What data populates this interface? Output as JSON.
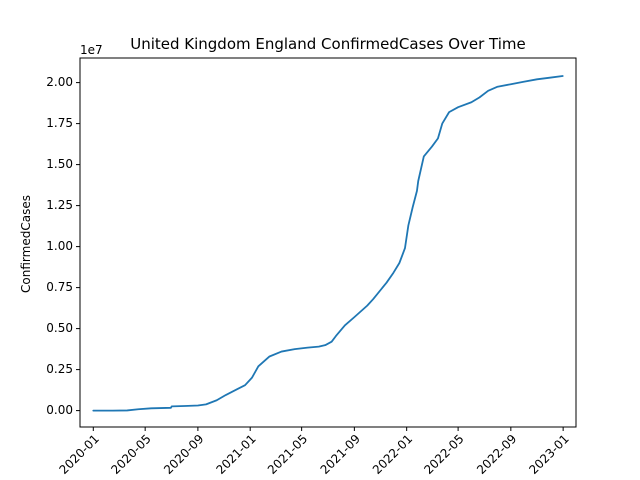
{
  "chart_data": {
    "type": "line",
    "title": "United Kingdom England ConfirmedCases Over Time",
    "xlabel": "",
    "ylabel": "ConfirmedCases",
    "y_offset_label": "1e7",
    "x_range": [
      "2019-12-01",
      "2023-01-31"
    ],
    "ylim": [
      -1000000,
      21500000
    ],
    "grid": false,
    "x_ticks": [
      "2020-01-01",
      "2020-05-01",
      "2020-09-01",
      "2021-01-01",
      "2021-05-01",
      "2021-09-01",
      "2022-01-01",
      "2022-05-01",
      "2022-09-01",
      "2023-01-01"
    ],
    "x_tick_labels": [
      "2020-01",
      "2020-05",
      "2020-09",
      "2021-01",
      "2021-05",
      "2021-09",
      "2022-01",
      "2022-05",
      "2022-09",
      "2023-01"
    ],
    "y_ticks": [
      0,
      2500000,
      5000000,
      7500000,
      10000000,
      12500000,
      15000000,
      17500000,
      20000000
    ],
    "y_tick_labels": [
      "0.00",
      "0.25",
      "0.50",
      "0.75",
      "1.00",
      "1.25",
      "1.50",
      "1.75",
      "2.00"
    ],
    "line_color": "#1f77b4",
    "series": [
      {
        "x": [
          "2020-01-01",
          "2020-02-15",
          "2020-03-20",
          "2020-04-15",
          "2020-05-15",
          "2020-06-30",
          "2020-07-02",
          "2020-08-01",
          "2020-09-01",
          "2020-09-20",
          "2020-10-15",
          "2020-11-05",
          "2020-12-01",
          "2020-12-20",
          "2021-01-05",
          "2021-01-20",
          "2021-02-15",
          "2021-03-15",
          "2021-04-15",
          "2021-05-15",
          "2021-06-10",
          "2021-06-25",
          "2021-07-10",
          "2021-07-20",
          "2021-08-10",
          "2021-09-01",
          "2021-10-01",
          "2021-10-15",
          "2021-11-15",
          "2021-12-01",
          "2021-12-15",
          "2021-12-28",
          "2022-01-05",
          "2022-01-15",
          "2022-01-25",
          "2022-01-28",
          "2022-02-10",
          "2022-03-01",
          "2022-03-15",
          "2022-03-25",
          "2022-04-10",
          "2022-05-01",
          "2022-06-01",
          "2022-06-20",
          "2022-07-10",
          "2022-08-01",
          "2022-09-01",
          "2022-10-01",
          "2022-11-01",
          "2022-12-01",
          "2022-12-31"
        ],
        "y": [
          0,
          0,
          10000,
          80000,
          140000,
          170000,
          260000,
          280000,
          310000,
          380000,
          630000,
          950000,
          1300000,
          1550000,
          2000000,
          2700000,
          3300000,
          3600000,
          3750000,
          3840000,
          3900000,
          3990000,
          4200000,
          4550000,
          5200000,
          5700000,
          6400000,
          6800000,
          7800000,
          8400000,
          9000000,
          9900000,
          11300000,
          12400000,
          13400000,
          14000000,
          15500000,
          16100000,
          16600000,
          17500000,
          18200000,
          18500000,
          18800000,
          19100000,
          19500000,
          19750000,
          19900000,
          20050000,
          20200000,
          20300000,
          20400000
        ]
      }
    ]
  }
}
